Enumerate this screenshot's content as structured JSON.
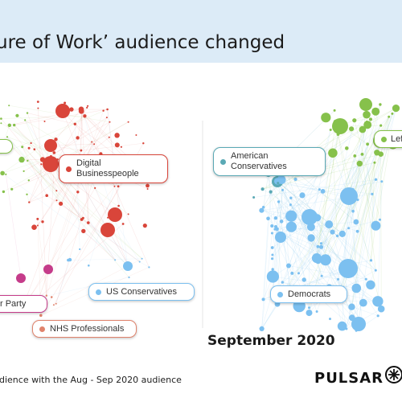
{
  "title": "ture of Work’ audience changed",
  "left_labels": {
    "digital": [
      "Digital",
      "Businesspeople"
    ],
    "us_conservatives": "US Conservatives",
    "labour_party": "r Party",
    "nhs": "NHS Professionals"
  },
  "right_labels": {
    "american": [
      "American",
      "Conservatives"
    ],
    "left": "Lef",
    "democrats": "Democrats"
  },
  "right_caption": "September 2020",
  "footer_note": "dience with the Aug - Sep 2020 audience",
  "brand": "PULSAR",
  "colors": {
    "red": "#d9453a",
    "green": "#86c14b",
    "blue": "#7cc0f0",
    "teal": "#5aa9b5",
    "pink": "#c53c8a",
    "salmon": "#e0836c",
    "title_band": "#dcebf7"
  }
}
